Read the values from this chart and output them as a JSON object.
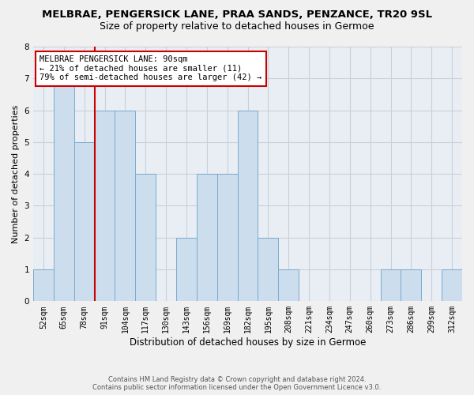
{
  "title": "MELBRAE, PENGERSICK LANE, PRAA SANDS, PENZANCE, TR20 9SL",
  "subtitle": "Size of property relative to detached houses in Germoe",
  "xlabel": "Distribution of detached houses by size in Germoe",
  "ylabel": "Number of detached properties",
  "categories": [
    "52sqm",
    "65sqm",
    "78sqm",
    "91sqm",
    "104sqm",
    "117sqm",
    "130sqm",
    "143sqm",
    "156sqm",
    "169sqm",
    "182sqm",
    "195sqm",
    "208sqm",
    "221sqm",
    "234sqm",
    "247sqm",
    "260sqm",
    "273sqm",
    "286sqm",
    "299sqm",
    "312sqm"
  ],
  "values": [
    1,
    7,
    5,
    6,
    6,
    4,
    0,
    2,
    4,
    4,
    6,
    2,
    1,
    0,
    0,
    0,
    0,
    1,
    1,
    0,
    1
  ],
  "bar_color": "#ccdded",
  "bar_edge_color": "#7aabcc",
  "marker_label": "MELBRAE PENGERSICK LANE: 90sqm",
  "annotation_line1": "← 21% of detached houses are smaller (11)",
  "annotation_line2": "79% of semi-detached houses are larger (42) →",
  "annotation_box_color": "#ffffff",
  "annotation_box_edge": "#cc0000",
  "marker_line_color": "#cc0000",
  "ylim": [
    0,
    8
  ],
  "yticks": [
    0,
    1,
    2,
    3,
    4,
    5,
    6,
    7,
    8
  ],
  "grid_color": "#c8d0d8",
  "background_color": "#e8eef4",
  "fig_background": "#f0f0f0",
  "footer_line1": "Contains HM Land Registry data © Crown copyright and database right 2024.",
  "footer_line2": "Contains public sector information licensed under the Open Government Licence v3.0.",
  "title_fontsize": 9.5,
  "subtitle_fontsize": 9,
  "xlabel_fontsize": 8.5,
  "ylabel_fontsize": 8,
  "tick_fontsize": 7,
  "annotation_fontsize": 7.5
}
